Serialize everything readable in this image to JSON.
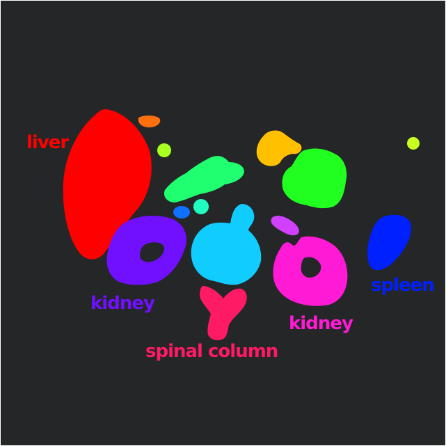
{
  "labels": {
    "liver": "liver",
    "kidney_left": "kidney",
    "spinal_column": "spinal column",
    "kidney_right": "kidney",
    "spleen": "spleen"
  },
  "colors": {
    "background": "#252628",
    "liver": "#ff0000",
    "kidney_left": "#7010ff",
    "spinal_column": "#ff1a66",
    "kidney_right": "#ff1ad6",
    "spleen": "#0020ff",
    "aorta_body": "#10ccff",
    "bowel_green": "#20ff20",
    "pancreas": "#20ff70",
    "stomach": "#ffc000",
    "gallbladder": "#ff7010",
    "small_yellow": "#c8ff20",
    "small_blue": "#1070ff",
    "small_cyan": "#20ffc0"
  }
}
